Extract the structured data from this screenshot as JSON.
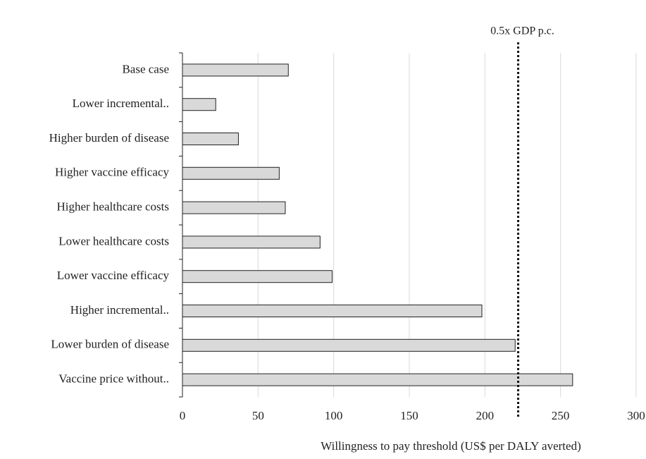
{
  "chart_data": {
    "type": "hbar",
    "x_label": "Willingness to pay threshold (US$ per DALY averted)",
    "categories": [
      "Base case",
      "Lower incremental..",
      "Higher burden of disease",
      "Higher vaccine efficacy",
      "Higher healthcare costs",
      "Lower healthcare costs",
      "Lower vaccine efficacy",
      "Higher incremental..",
      "Lower burden of disease",
      "Vaccine price without.."
    ],
    "values": [
      70,
      22,
      37,
      64,
      68,
      91,
      99,
      198,
      220,
      258
    ],
    "color": "#d9d9d9",
    "xlim": [
      0,
      300
    ],
    "xticks": [
      0,
      50,
      100,
      150,
      200,
      250,
      300
    ],
    "grid": true,
    "reference_line": {
      "value": 222,
      "label": "0.5x GDP p.c."
    }
  }
}
